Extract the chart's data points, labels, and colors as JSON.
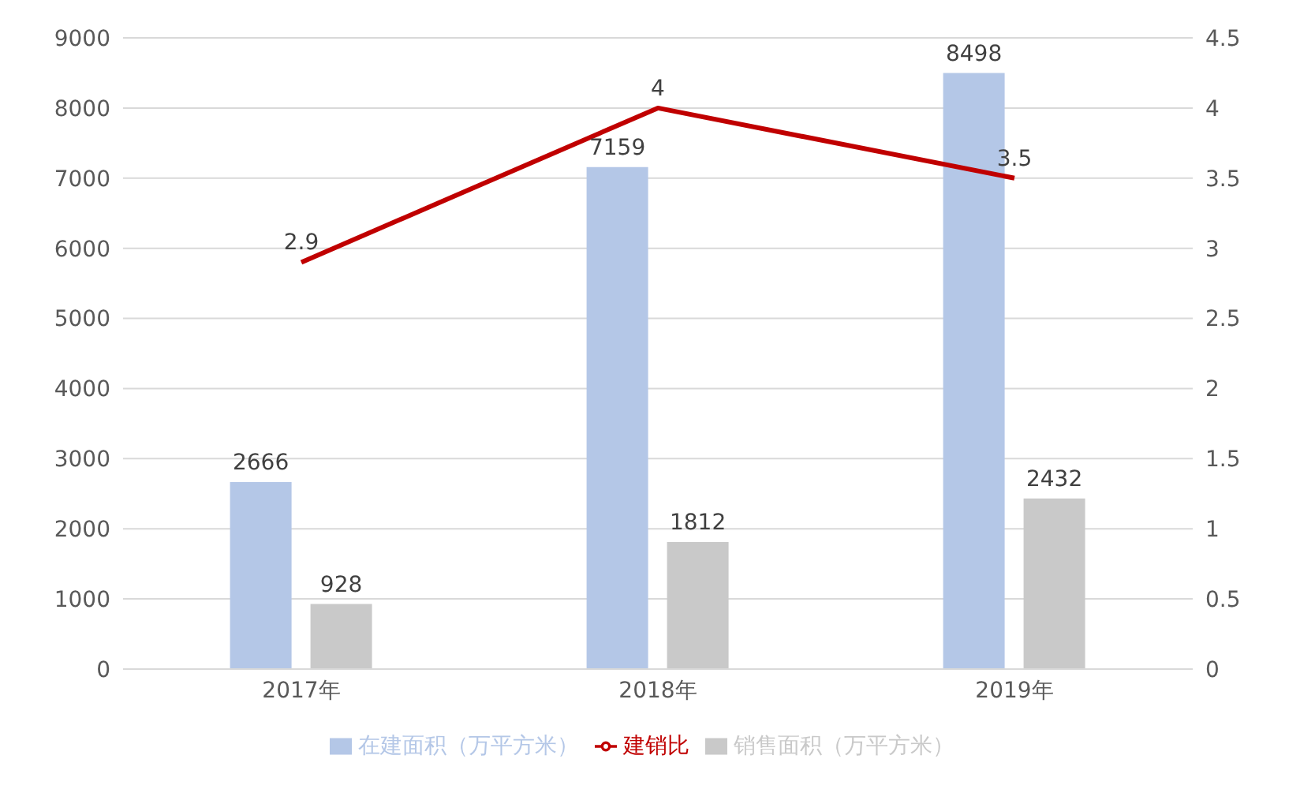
{
  "chart_data": {
    "type": "bar",
    "categories": [
      "2017年",
      "2018年",
      "2019年"
    ],
    "series": [
      {
        "name": "在建面积（万平方米）",
        "color": "#b4c7e7",
        "values": [
          2666,
          7159,
          8498
        ]
      },
      {
        "name": "销售面积（万平方米）",
        "color": "#c9c9c9",
        "values": [
          928,
          1812,
          2432
        ]
      },
      {
        "name": "建销比",
        "color": "#c00000",
        "type": "line",
        "axis": "y2",
        "values": [
          2.9,
          4,
          3.5
        ]
      }
    ],
    "ylim": [
      0,
      9000
    ],
    "yticks": [
      0,
      1000,
      2000,
      3000,
      4000,
      5000,
      6000,
      7000,
      8000,
      9000
    ],
    "y2lim": [
      0,
      4.5
    ],
    "y2ticks": [
      0,
      0.5,
      1,
      1.5,
      2,
      2.5,
      3,
      3.5,
      4,
      4.5
    ],
    "data_labels": true,
    "grid": "y",
    "legend": "bottom",
    "marker": "none",
    "line_style": "solid"
  }
}
